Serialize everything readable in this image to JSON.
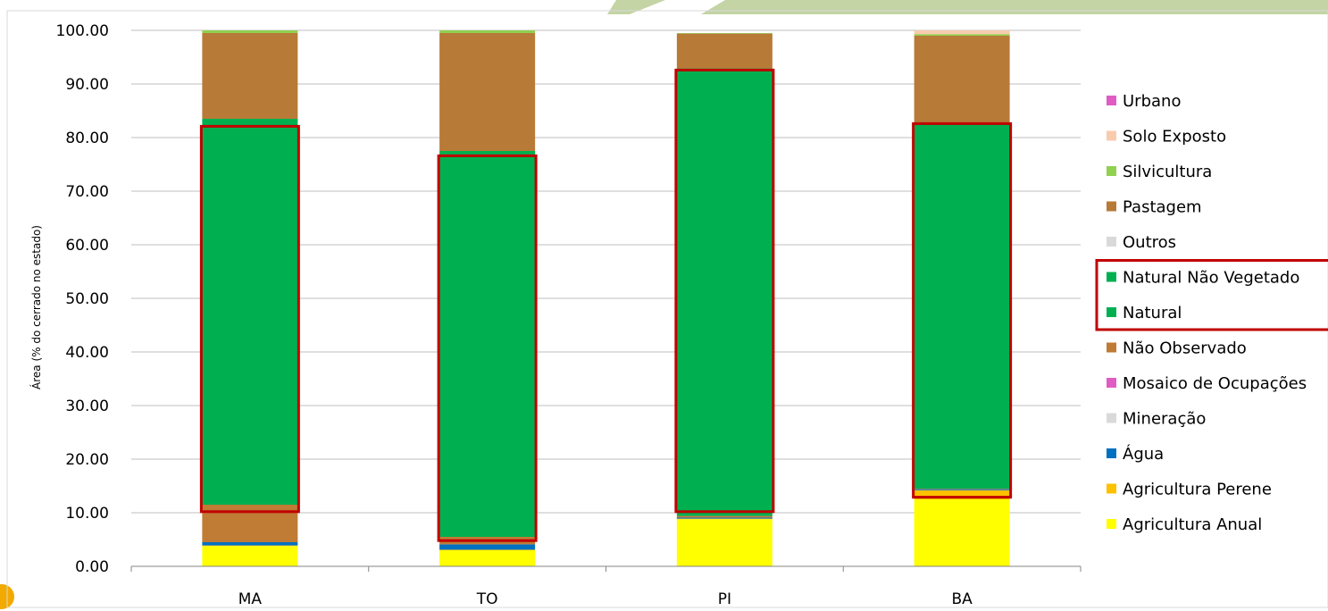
{
  "chart_data": {
    "type": "bar",
    "stacked": true,
    "ylabel": "Área (% do cerrado no estado)",
    "xlabel": "",
    "ylim": [
      0,
      100
    ],
    "yticks": [
      "0.00",
      "10.00",
      "20.00",
      "30.00",
      "40.00",
      "50.00",
      "60.00",
      "70.00",
      "80.00",
      "90.00",
      "100.00"
    ],
    "grid": "horizontal",
    "legend_position": "right",
    "categories": [
      "MA",
      "TO",
      "PI",
      "BA"
    ],
    "series": [
      {
        "name": "Agricultura Anual",
        "color": "#ffff00",
        "values": [
          3.8,
          3.0,
          8.8,
          12.5
        ]
      },
      {
        "name": "Agricultura Perene",
        "color": "#ffc000",
        "values": [
          0.1,
          0.1,
          0.1,
          1.7
        ]
      },
      {
        "name": "Água",
        "color": "#0070c0",
        "values": [
          0.6,
          1.0,
          0.2,
          0.2
        ]
      },
      {
        "name": "Mineração",
        "color": "#d9d9d9",
        "values": [
          0.0,
          0.0,
          0.0,
          0.0
        ]
      },
      {
        "name": "Mosaico de Ocupações",
        "color": "#e05cc4",
        "values": [
          0.0,
          0.0,
          0.0,
          0.0
        ]
      },
      {
        "name": "Não Observado",
        "color": "#c07b35",
        "values": [
          7.0,
          1.4,
          0.3,
          0.1
        ]
      },
      {
        "name": "Natural",
        "color": "#00b050",
        "values": [
          72.0,
          72.0,
          83.5,
          68.0
        ]
      },
      {
        "name": "Natural Não Vegetado",
        "color": "#00b050",
        "values": [
          0.0,
          0.0,
          0.0,
          0.0
        ]
      },
      {
        "name": "Outros",
        "color": "#d9d9d9",
        "values": [
          0.0,
          0.0,
          0.0,
          0.0
        ]
      },
      {
        "name": "Pastagem",
        "color": "#b87a37",
        "values": [
          16.0,
          22.0,
          6.5,
          16.5
        ]
      },
      {
        "name": "Silvicultura",
        "color": "#92d050",
        "values": [
          0.5,
          0.5,
          0.1,
          0.3
        ]
      },
      {
        "name": "Solo Exposto",
        "color": "#f8cbad",
        "values": [
          0.0,
          0.0,
          0.0,
          0.7
        ]
      },
      {
        "name": "Urbano",
        "color": "#e05cc4",
        "values": [
          0.0,
          0.0,
          0.0,
          0.0
        ]
      }
    ],
    "highlights": [
      {
        "category": "MA",
        "from": 10.2,
        "to": 82.1
      },
      {
        "category": "TO",
        "from": 4.8,
        "to": 76.6
      },
      {
        "category": "PI",
        "from": 10.2,
        "to": 92.6
      },
      {
        "category": "BA",
        "from": 12.9,
        "to": 82.6
      }
    ],
    "highlighted_legend_entries": [
      "Natural Não Vegetado",
      "Natural"
    ],
    "highlight_color": "#c00000"
  }
}
